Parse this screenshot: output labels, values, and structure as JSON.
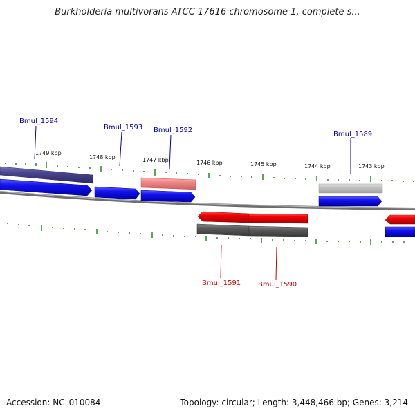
{
  "title": "Burkholderia multivorans ATCC 17616 chromosome 1, complete s...",
  "footer": {
    "accession": "Accession: NC_010084",
    "summary": "Topology: circular; Length: 3,448,466 bp; Genes: 3,214"
  },
  "colors": {
    "background": "#ffffff",
    "forward_gene": "#0000ee",
    "reverse_gene": "#ee0000",
    "forward_label": "#0000aa",
    "reverse_label": "#cc0000",
    "tick": "#228822",
    "backbone": "#888888"
  },
  "scale_unit": "kbp",
  "kbp_labels": [
    "1749 kbp",
    "1748 kbp",
    "1747 kbp",
    "1746 kbp",
    "1745 kbp",
    "1744 kbp",
    "1743 kbp"
  ],
  "genes": [
    {
      "locus": "Bmul_1594",
      "strand": "forward"
    },
    {
      "locus": "Bmul_1593",
      "strand": "forward"
    },
    {
      "locus": "Bmul_1592",
      "strand": "forward"
    },
    {
      "locus": "Bmul_1591",
      "strand": "reverse"
    },
    {
      "locus": "Bmul_1590",
      "strand": "reverse"
    },
    {
      "locus": "Bmul_1589",
      "strand": "forward"
    }
  ]
}
